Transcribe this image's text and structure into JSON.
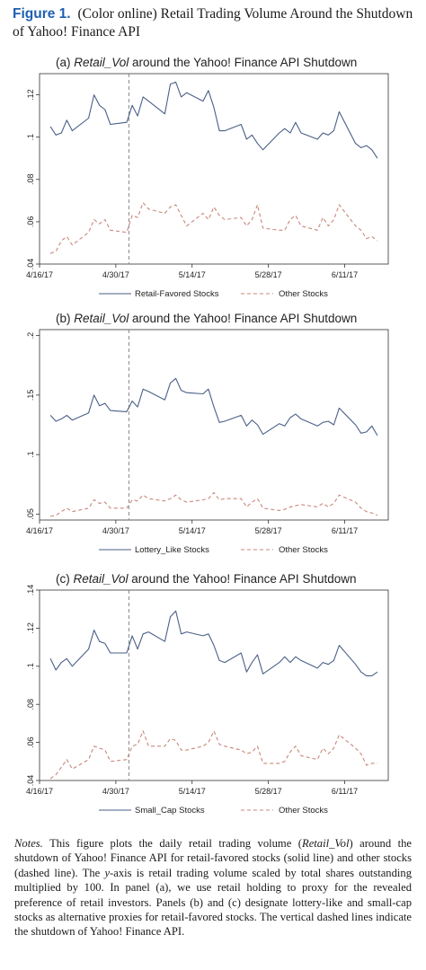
{
  "figure": {
    "label": "Figure 1.",
    "caption": "(Color online) Retail Trading Volume Around the Shutdown of Yahoo! Finance API"
  },
  "chart_data": [
    {
      "type": "line",
      "panel": "(a)",
      "title_prefix": "(a)",
      "title_var": "Retail_Vol",
      "title_rest": "around the Yahoo! Finance API Shutdown",
      "x_ticks": [
        "4/16/17",
        "4/30/17",
        "5/14/17",
        "5/28/17",
        "6/11/17"
      ],
      "y_ticks": [
        0.04,
        0.06,
        0.08,
        0.1,
        0.12
      ],
      "y_tick_labels": [
        ".04",
        ".06",
        ".08",
        ".1",
        ".12"
      ],
      "ylim": [
        0.04,
        0.13
      ],
      "shutdown_day": 16,
      "grid": false,
      "legend_position": "bottom",
      "x": [
        2,
        3,
        4,
        5,
        6,
        9,
        10,
        11,
        12,
        13,
        16,
        17,
        18,
        19,
        20,
        23,
        24,
        25,
        26,
        27,
        30,
        31,
        32,
        33,
        34,
        37,
        38,
        39,
        40,
        41,
        44,
        45,
        46,
        47,
        48,
        51,
        52,
        53,
        54,
        55,
        58,
        59,
        60,
        61,
        62
      ],
      "series": [
        {
          "name": "Retail-Favored Stocks",
          "style": "solid",
          "values": [
            0.105,
            0.101,
            0.102,
            0.108,
            0.103,
            0.109,
            0.12,
            0.115,
            0.113,
            0.106,
            0.107,
            0.115,
            0.11,
            0.119,
            0.117,
            0.111,
            0.125,
            0.126,
            0.119,
            0.121,
            0.117,
            0.122,
            0.114,
            0.103,
            0.103,
            0.106,
            0.099,
            0.101,
            0.097,
            0.094,
            0.102,
            0.104,
            0.102,
            0.107,
            0.102,
            0.099,
            0.102,
            0.101,
            0.103,
            0.112,
            0.097,
            0.095,
            0.096,
            0.094,
            0.09
          ]
        },
        {
          "name": "Other Stocks",
          "style": "dashed",
          "values": [
            0.045,
            0.046,
            0.051,
            0.053,
            0.049,
            0.055,
            0.061,
            0.059,
            0.061,
            0.056,
            0.055,
            0.063,
            0.062,
            0.069,
            0.066,
            0.064,
            0.067,
            0.068,
            0.063,
            0.058,
            0.064,
            0.061,
            0.067,
            0.063,
            0.061,
            0.062,
            0.058,
            0.061,
            0.068,
            0.057,
            0.056,
            0.056,
            0.061,
            0.063,
            0.058,
            0.056,
            0.062,
            0.058,
            0.061,
            0.068,
            0.058,
            0.056,
            0.052,
            0.053,
            0.051
          ]
        }
      ]
    },
    {
      "type": "line",
      "panel": "(b)",
      "title_prefix": "(b)",
      "title_var": "Retail_Vol",
      "title_rest": "around the Yahoo! Finance API Shutdown",
      "x_ticks": [
        "4/16/17",
        "4/30/17",
        "5/14/17",
        "5/28/17",
        "6/11/17"
      ],
      "y_ticks": [
        0.05,
        0.1,
        0.15,
        0.2
      ],
      "y_tick_labels": [
        ".05",
        ".1",
        ".15",
        ".2"
      ],
      "ylim": [
        0.045,
        0.205
      ],
      "shutdown_day": 16,
      "grid": false,
      "legend_position": "bottom",
      "x": [
        2,
        3,
        4,
        5,
        6,
        9,
        10,
        11,
        12,
        13,
        16,
        17,
        18,
        19,
        20,
        23,
        24,
        25,
        26,
        27,
        30,
        31,
        32,
        33,
        34,
        37,
        38,
        39,
        40,
        41,
        44,
        45,
        46,
        47,
        48,
        51,
        52,
        53,
        54,
        55,
        58,
        59,
        60,
        61,
        62
      ],
      "series": [
        {
          "name": "Lottery_Like Stocks",
          "style": "solid",
          "values": [
            0.133,
            0.128,
            0.13,
            0.133,
            0.129,
            0.135,
            0.15,
            0.141,
            0.143,
            0.137,
            0.136,
            0.145,
            0.14,
            0.155,
            0.153,
            0.146,
            0.16,
            0.164,
            0.154,
            0.152,
            0.151,
            0.155,
            0.14,
            0.127,
            0.128,
            0.133,
            0.124,
            0.129,
            0.125,
            0.117,
            0.126,
            0.124,
            0.131,
            0.134,
            0.13,
            0.124,
            0.127,
            0.128,
            0.125,
            0.139,
            0.125,
            0.118,
            0.119,
            0.124,
            0.116
          ]
        },
        {
          "name": "Other Stocks",
          "style": "dashed",
          "values": [
            0.048,
            0.049,
            0.052,
            0.055,
            0.052,
            0.055,
            0.062,
            0.059,
            0.06,
            0.055,
            0.055,
            0.062,
            0.061,
            0.066,
            0.063,
            0.061,
            0.063,
            0.066,
            0.062,
            0.06,
            0.062,
            0.063,
            0.068,
            0.062,
            0.063,
            0.063,
            0.056,
            0.06,
            0.063,
            0.055,
            0.053,
            0.054,
            0.056,
            0.057,
            0.058,
            0.056,
            0.059,
            0.056,
            0.059,
            0.066,
            0.06,
            0.055,
            0.052,
            0.051,
            0.049
          ]
        }
      ]
    },
    {
      "type": "line",
      "panel": "(c)",
      "title_prefix": "(c)",
      "title_var": "Retail_Vol",
      "title_rest": "around the Yahoo! Finance API Shutdown",
      "x_ticks": [
        "4/16/17",
        "4/30/17",
        "5/14/17",
        "5/28/17",
        "6/11/17"
      ],
      "y_ticks": [
        0.04,
        0.06,
        0.08,
        0.1,
        0.12,
        0.14
      ],
      "y_tick_labels": [
        ".04",
        ".06",
        ".08",
        ".1",
        ".12",
        ".14"
      ],
      "ylim": [
        0.04,
        0.14
      ],
      "shutdown_day": 16,
      "grid": false,
      "legend_position": "bottom",
      "x": [
        2,
        3,
        4,
        5,
        6,
        9,
        10,
        11,
        12,
        13,
        16,
        17,
        18,
        19,
        20,
        23,
        24,
        25,
        26,
        27,
        30,
        31,
        32,
        33,
        34,
        37,
        38,
        39,
        40,
        41,
        44,
        45,
        46,
        47,
        48,
        51,
        52,
        53,
        54,
        55,
        58,
        59,
        60,
        61,
        62
      ],
      "series": [
        {
          "name": "Small_Cap Stocks",
          "style": "solid",
          "values": [
            0.104,
            0.098,
            0.102,
            0.104,
            0.1,
            0.109,
            0.119,
            0.113,
            0.112,
            0.107,
            0.107,
            0.116,
            0.109,
            0.117,
            0.118,
            0.113,
            0.126,
            0.129,
            0.117,
            0.118,
            0.116,
            0.117,
            0.111,
            0.103,
            0.102,
            0.107,
            0.097,
            0.102,
            0.106,
            0.096,
            0.102,
            0.105,
            0.102,
            0.105,
            0.103,
            0.099,
            0.102,
            0.101,
            0.103,
            0.111,
            0.101,
            0.097,
            0.095,
            0.095,
            0.097
          ]
        },
        {
          "name": "Other Stocks",
          "style": "dashed",
          "values": [
            0.041,
            0.043,
            0.047,
            0.051,
            0.046,
            0.051,
            0.058,
            0.057,
            0.056,
            0.05,
            0.051,
            0.058,
            0.059,
            0.066,
            0.058,
            0.058,
            0.062,
            0.061,
            0.056,
            0.056,
            0.058,
            0.06,
            0.066,
            0.059,
            0.058,
            0.056,
            0.054,
            0.055,
            0.058,
            0.049,
            0.049,
            0.05,
            0.055,
            0.058,
            0.053,
            0.051,
            0.057,
            0.054,
            0.057,
            0.064,
            0.057,
            0.054,
            0.048,
            0.049,
            0.049
          ]
        }
      ]
    }
  ],
  "notes": {
    "label": "Notes.",
    "t1": " This figure plots the daily retail trading volume (",
    "var1": "Retail_Vol",
    "t2": ") around the shutdown of Yahoo! Finance API for retail-favored stocks (solid line) and other stocks (dashed line). The ",
    "var2": "y",
    "t3": "-axis is retail trading volume scaled by total shares outstanding multiplied by 100. In panel (a), we use retail holding to proxy for the revealed preference of retail investors. Panels (b) and (c) designate lottery-like and small-cap stocks as alternative proxies for retail-favored stocks. The vertical dashed lines indicate the shutdown of Yahoo! Finance API."
  },
  "colors": {
    "solid_line": "#4a5f87",
    "dashed_line": "#c8877a",
    "shutdown_line": "#888888",
    "figure_label": "#1f5fb0"
  }
}
